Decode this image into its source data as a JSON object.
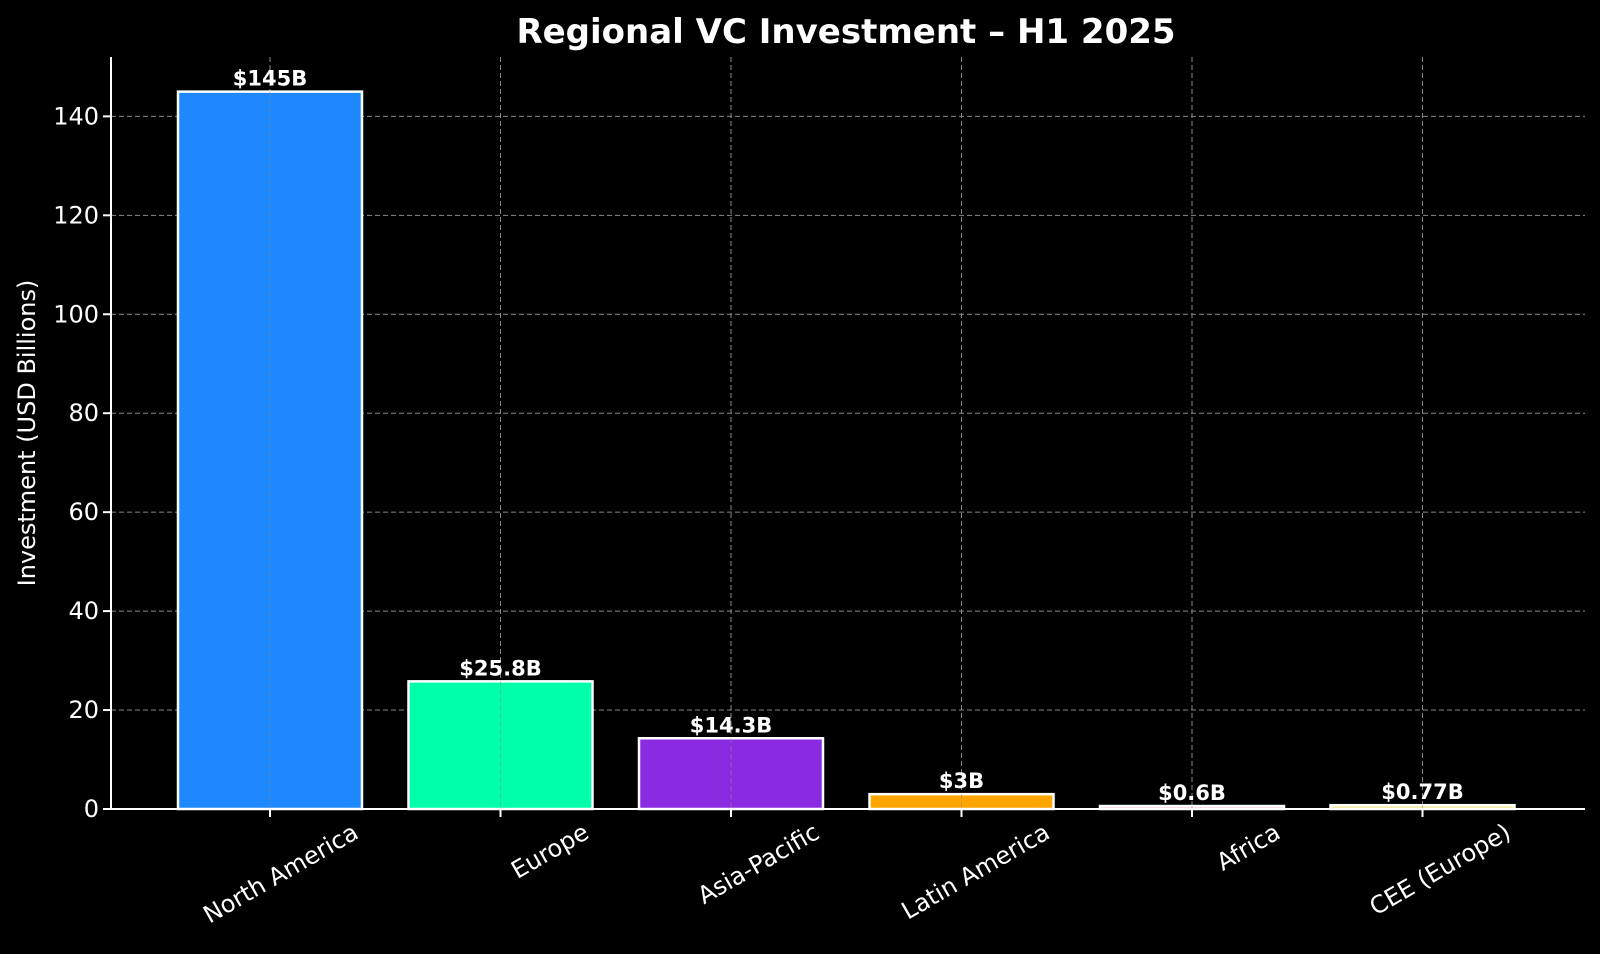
{
  "chart_data": {
    "type": "bar",
    "title": "Regional VC Investment – H1 2025",
    "xlabel": "",
    "ylabel": "Investment (USD Billions)",
    "categories": [
      "North America",
      "Europe",
      "Asia-Pacific",
      "Latin America",
      "Africa",
      "CEE (Europe)"
    ],
    "values": [
      145,
      25.8,
      14.3,
      3,
      0.6,
      0.77
    ],
    "data_labels": [
      "$145B",
      "$25.8B",
      "$14.3B",
      "$3B",
      "$0.6B",
      "$0.77B"
    ],
    "colors": [
      "#1e88ff",
      "#00ffaa",
      "#8a2be2",
      "#ffa500",
      "#ffb6c1",
      "#f0e68c"
    ],
    "ylim": [
      0,
      152
    ],
    "yticks": [
      0,
      20,
      40,
      60,
      80,
      100,
      120,
      140
    ],
    "grid": true,
    "background": "#000000",
    "bar_edge_color": "#ffffff"
  }
}
